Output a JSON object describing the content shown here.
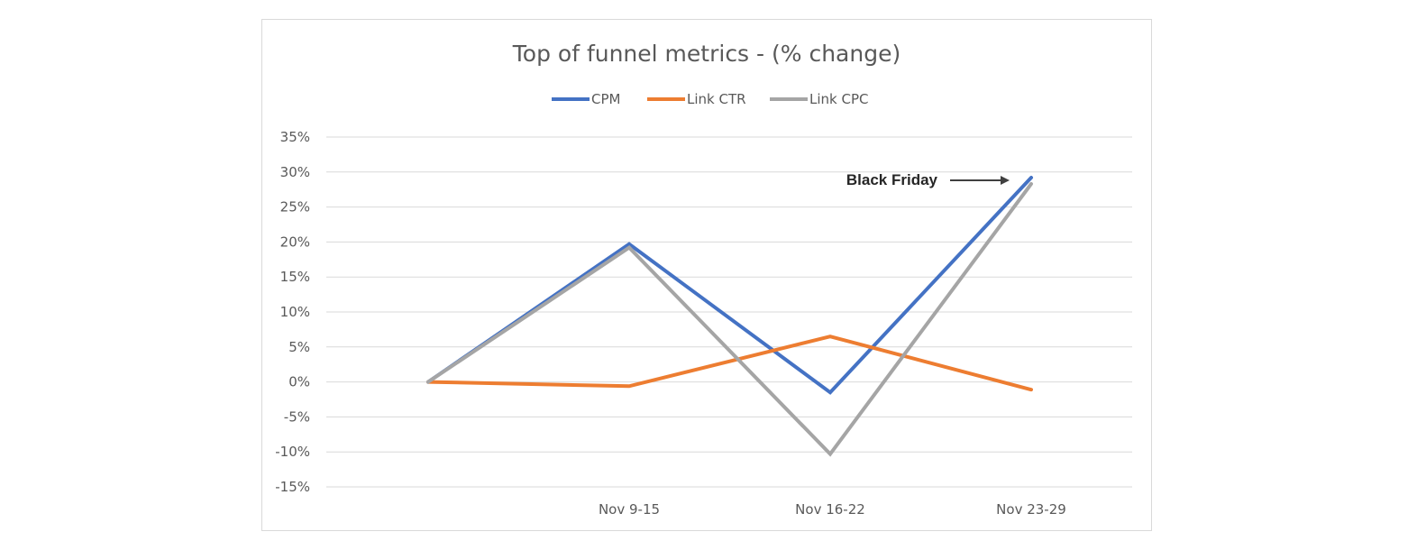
{
  "chart_data": {
    "type": "line",
    "title": "Top of funnel metrics - (% change)",
    "xlabel": "",
    "ylabel": "",
    "categories": [
      "",
      "Nov 9-15",
      "Nov 16-22",
      "Nov 23-29"
    ],
    "ylim": [
      -15,
      35
    ],
    "ytick_step": 5,
    "ytick_labels": [
      "35%",
      "30%",
      "25%",
      "20%",
      "15%",
      "10%",
      "5%",
      "0%",
      "-5%",
      "-10%",
      "-15%"
    ],
    "grid": true,
    "legend_position": "top-center",
    "series": [
      {
        "name": "CPM",
        "color": "#4472C4",
        "values": [
          0,
          19.7,
          -1.5,
          29.2
        ]
      },
      {
        "name": "Link CTR",
        "color": "#ED7D31",
        "values": [
          0,
          -0.6,
          6.5,
          -1.1
        ]
      },
      {
        "name": "Link CPC",
        "color": "#A5A5A5",
        "values": [
          0,
          19.2,
          -10.3,
          28.3
        ]
      }
    ],
    "annotations": [
      {
        "text": "Black Friday",
        "target_category": "Nov 23-29",
        "target_value": 29.2,
        "arrow": true,
        "color": "#404040"
      }
    ]
  }
}
